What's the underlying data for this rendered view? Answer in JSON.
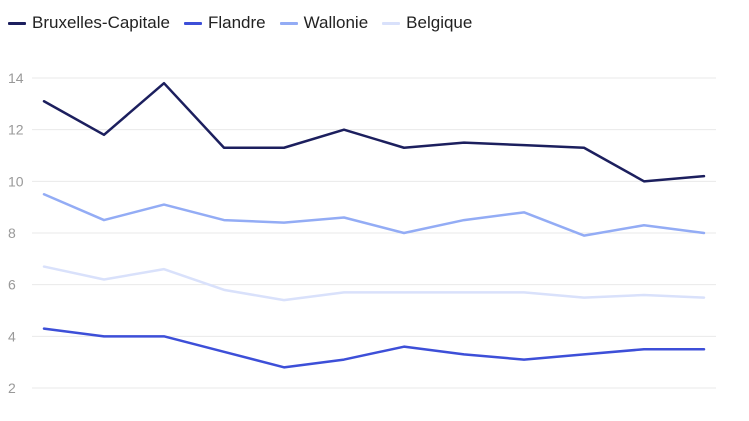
{
  "chart_data": {
    "type": "line",
    "x": [
      1,
      2,
      3,
      4,
      5,
      6,
      7,
      8,
      9,
      10,
      11,
      12
    ],
    "ylim": [
      2,
      14
    ],
    "yticks": [
      2,
      4,
      6,
      8,
      10,
      12,
      14
    ],
    "grid": true,
    "legend_position": "top-left",
    "series": [
      {
        "name": "Bruxelles-Capitale",
        "color": "#1c1f5e",
        "values": [
          13.1,
          11.8,
          13.8,
          11.3,
          11.3,
          12.0,
          11.3,
          11.5,
          11.4,
          11.3,
          10.0,
          10.2
        ]
      },
      {
        "name": "Flandre",
        "color": "#3d4fd8",
        "values": [
          4.3,
          4.0,
          4.0,
          3.4,
          2.8,
          3.1,
          3.6,
          3.3,
          3.1,
          3.3,
          3.5,
          3.5
        ]
      },
      {
        "name": "Wallonie",
        "color": "#93acf5",
        "values": [
          9.5,
          8.5,
          9.1,
          8.5,
          8.4,
          8.6,
          8.0,
          8.5,
          8.8,
          7.9,
          8.3,
          8.0
        ]
      },
      {
        "name": "Belgique",
        "color": "#d9e1fb",
        "values": [
          6.7,
          6.2,
          6.6,
          5.8,
          5.4,
          5.7,
          5.7,
          5.7,
          5.7,
          5.5,
          5.6,
          5.5
        ]
      }
    ]
  }
}
